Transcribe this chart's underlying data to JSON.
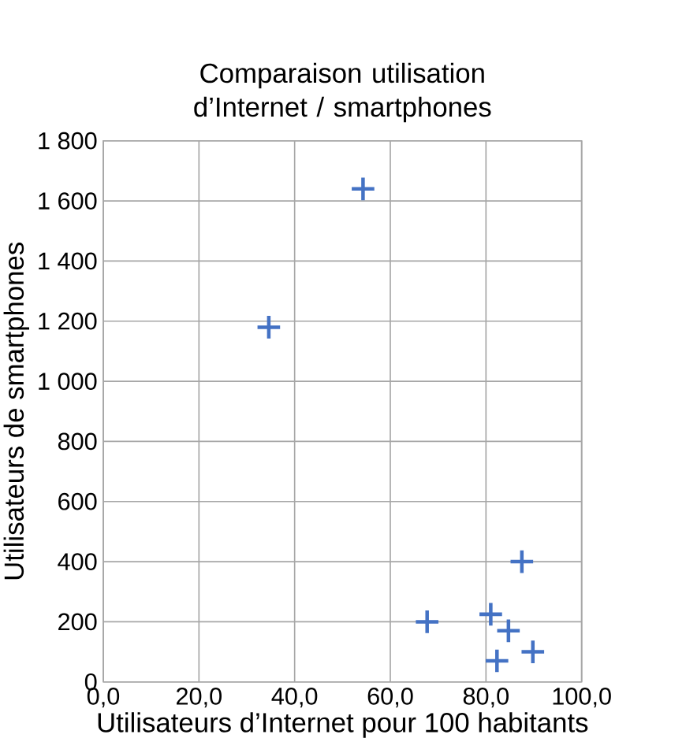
{
  "chart_data": {
    "type": "scatter",
    "title": "Comparaison utilisation d’Internet  / smartphones",
    "xlabel": "Utilisateurs d’Internet pour 100 habitants",
    "ylabel": "Utilisateurs de  smartphones",
    "x": [
      54.3,
      34.6,
      67.7,
      81.0,
      84.7,
      87.5,
      89.8,
      82.3
    ],
    "values": [
      1640,
      1180,
      200,
      225,
      170,
      400,
      100,
      70
    ],
    "color": "#4472c4",
    "marker": "cross",
    "grid": true,
    "xlim": [
      0,
      100
    ],
    "ylim": [
      0,
      1800
    ],
    "xticks": [
      {
        "value": 0,
        "label": "0,0"
      },
      {
        "value": 20,
        "label": "20,0"
      },
      {
        "value": 40,
        "label": "40,0"
      },
      {
        "value": 60,
        "label": "60,0"
      },
      {
        "value": 80,
        "label": "80,0"
      },
      {
        "value": 100,
        "label": "100,0"
      }
    ],
    "yticks": [
      0,
      200,
      400,
      600,
      800,
      {
        "value": 1000,
        "label": "1 000"
      },
      {
        "value": 1200,
        "label": "1 200"
      },
      {
        "value": 1400,
        "label": "1 400"
      },
      {
        "value": 1600,
        "label": "1 600"
      },
      {
        "value": 1800,
        "label": "1 800"
      }
    ]
  }
}
